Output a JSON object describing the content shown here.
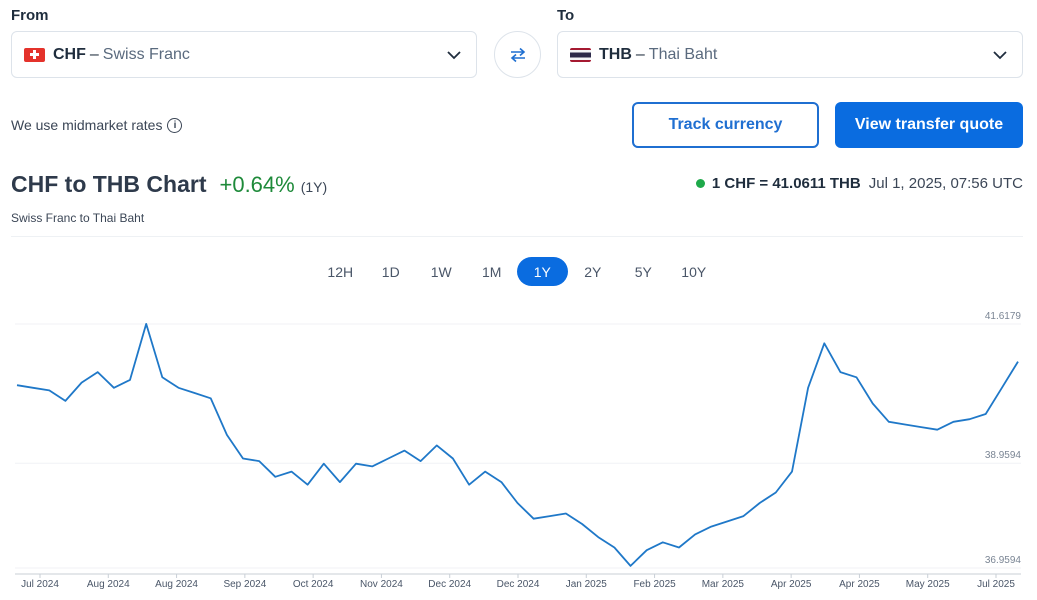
{
  "from": {
    "label": "From",
    "code": "CHF",
    "dash": "–",
    "name": "Swiss Franc",
    "flag": "switzerland-flag"
  },
  "to": {
    "label": "To",
    "code": "THB",
    "dash": "–",
    "name": "Thai Baht",
    "flag": "thailand-flag"
  },
  "midmarket": {
    "text": "We use midmarket rates",
    "info_glyph": "i"
  },
  "buttons": {
    "track": "Track currency",
    "quote": "View transfer quote"
  },
  "heading": {
    "title": "CHF to THB Chart",
    "change": "+0.64%",
    "period": "(1Y)",
    "subtitle": "Swiss Franc to Thai Baht"
  },
  "rate": {
    "value": "1 CHF = 41.0611 THB",
    "timestamp": "Jul 1, 2025, 07:56 UTC"
  },
  "tabs": [
    {
      "label": "12H",
      "active": false
    },
    {
      "label": "1D",
      "active": false
    },
    {
      "label": "1W",
      "active": false
    },
    {
      "label": "1M",
      "active": false
    },
    {
      "label": "1Y",
      "active": true
    },
    {
      "label": "2Y",
      "active": false
    },
    {
      "label": "5Y",
      "active": false
    },
    {
      "label": "10Y",
      "active": false
    }
  ],
  "colors": {
    "accent": "#0a6ce0",
    "positive": "#1e8a3a",
    "line": "#1f78c8",
    "live_dot": "#1ea94a"
  },
  "chart_data": {
    "type": "line",
    "title": "",
    "xlabel": "",
    "ylabel": "",
    "ylim": [
      36.9594,
      41.6179
    ],
    "ytick_labels": [
      "41.6179",
      "38.9594",
      "36.9594"
    ],
    "xtick_labels": [
      "Jul 2024",
      "Aug 2024",
      "Aug 2024",
      "Sep 2024",
      "Oct 2024",
      "Nov 2024",
      "Dec 2024",
      "Dec 2024",
      "Jan 2025",
      "Feb 2025",
      "Mar 2025",
      "Apr 2025",
      "Apr 2025",
      "May 2025",
      "Jul 2025"
    ],
    "series": [
      {
        "values": [
          40.45,
          40.4,
          40.35,
          40.15,
          40.5,
          40.7,
          40.4,
          40.55,
          41.62,
          40.6,
          40.4,
          40.3,
          40.2,
          39.5,
          39.05,
          39.0,
          38.7,
          38.8,
          38.55,
          38.95,
          38.6,
          38.95,
          38.9,
          39.05,
          39.2,
          39.0,
          39.3,
          39.05,
          38.55,
          38.8,
          38.6,
          38.2,
          37.9,
          37.95,
          38.0,
          37.8,
          37.55,
          37.35,
          37.0,
          37.3,
          37.45,
          37.35,
          37.6,
          37.75,
          37.85,
          37.95,
          38.2,
          38.4,
          38.8,
          40.4,
          41.25,
          40.7,
          40.6,
          40.1,
          39.75,
          39.7,
          39.65,
          39.6,
          39.75,
          39.8,
          39.9,
          40.4,
          40.9
        ]
      }
    ]
  }
}
